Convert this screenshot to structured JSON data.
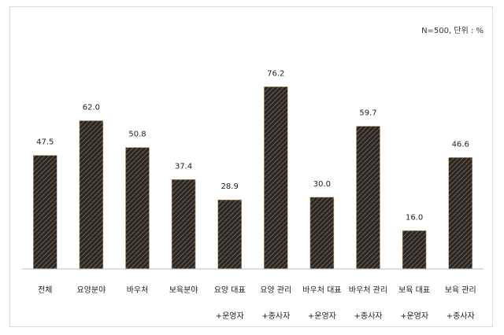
{
  "chart_data": {
    "type": "bar",
    "note": "N=500, 단위 : %",
    "categories": [
      [
        "전체"
      ],
      [
        "요양분야"
      ],
      [
        "바우처"
      ],
      [
        "보육분야"
      ],
      [
        "요양 대표",
        "+운영자"
      ],
      [
        "요양 관리",
        "+종사자"
      ],
      [
        "바우처 대표",
        "+운영자"
      ],
      [
        "바우처 관리",
        "+종사자"
      ],
      [
        "보육 대표",
        "+운영자"
      ],
      [
        "보육 관리",
        "+종사자"
      ]
    ],
    "values": [
      47.5,
      62.0,
      50.8,
      37.4,
      28.9,
      76.2,
      30.0,
      59.7,
      16.0,
      46.6
    ],
    "value_labels": [
      "47.5",
      "62.0",
      "50.8",
      "37.4",
      "28.9",
      "76.2",
      "30.0",
      "59.7",
      "16.0",
      "46.6"
    ],
    "ylim": [
      0,
      100
    ],
    "grid": false,
    "bar_color": "#2b2622",
    "pattern_color": "#6b625c"
  }
}
